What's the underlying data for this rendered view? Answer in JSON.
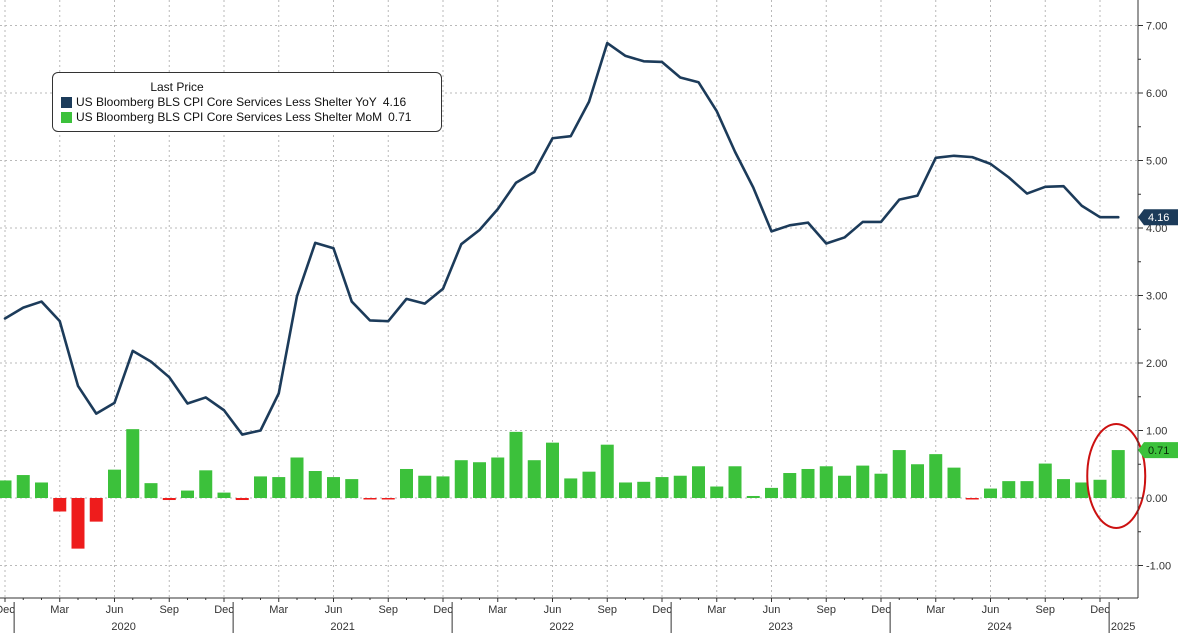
{
  "colors": {
    "yoy_line": "#1c3b5a",
    "mom_positive": "#3cc13b",
    "mom_negative": "#ee1c1c",
    "highlight_circle": "#cc1111",
    "grid": "#b9b9b9"
  },
  "legend": {
    "title": "Last Price",
    "items": [
      {
        "label": "US Bloomberg BLS CPI Core Services Less Shelter YoY",
        "value": "4.16",
        "color": "#1c3b5a"
      },
      {
        "label": "US Bloomberg BLS CPI Core Services Less Shelter MoM",
        "value": "0.71",
        "color": "#3cc13b"
      }
    ]
  },
  "badges": {
    "yoy": "4.16",
    "mom": "0.71"
  },
  "chart_data": {
    "type": "line",
    "x": [
      "2019-12",
      "2020-01",
      "2020-02",
      "2020-03",
      "2020-04",
      "2020-05",
      "2020-06",
      "2020-07",
      "2020-08",
      "2020-09",
      "2020-10",
      "2020-11",
      "2020-12",
      "2021-01",
      "2021-02",
      "2021-03",
      "2021-04",
      "2021-05",
      "2021-06",
      "2021-07",
      "2021-08",
      "2021-09",
      "2021-10",
      "2021-11",
      "2021-12",
      "2022-01",
      "2022-02",
      "2022-03",
      "2022-04",
      "2022-05",
      "2022-06",
      "2022-07",
      "2022-08",
      "2022-09",
      "2022-10",
      "2022-11",
      "2022-12",
      "2023-01",
      "2023-02",
      "2023-03",
      "2023-04",
      "2023-05",
      "2023-06",
      "2023-07",
      "2023-08",
      "2023-09",
      "2023-10",
      "2023-11",
      "2023-12",
      "2024-01",
      "2024-02",
      "2024-03",
      "2024-04",
      "2024-05",
      "2024-06",
      "2024-07",
      "2024-08",
      "2024-09",
      "2024-10",
      "2024-11",
      "2024-12",
      "2025-01"
    ],
    "series": [
      {
        "name": "US Bloomberg BLS CPI Core Services Less Shelter YoY",
        "type": "line",
        "values": [
          2.66,
          2.82,
          2.91,
          2.62,
          1.66,
          1.25,
          1.41,
          2.18,
          2.02,
          1.79,
          1.4,
          1.49,
          1.3,
          0.94,
          1.0,
          1.55,
          2.99,
          3.78,
          3.7,
          2.91,
          2.63,
          2.62,
          2.95,
          2.88,
          3.1,
          3.76,
          3.97,
          4.28,
          4.67,
          4.83,
          5.33,
          5.36,
          5.87,
          6.74,
          6.55,
          6.47,
          6.46,
          6.23,
          6.16,
          5.73,
          5.13,
          4.6,
          3.95,
          4.04,
          4.08,
          3.77,
          3.86,
          4.09,
          4.09,
          4.42,
          4.48,
          5.04,
          5.07,
          5.05,
          4.95,
          4.75,
          4.51,
          4.61,
          4.62,
          4.33,
          4.16,
          4.16
        ]
      },
      {
        "name": "US Bloomberg BLS CPI Core Services Less Shelter MoM",
        "type": "bar",
        "values": [
          0.26,
          0.34,
          0.23,
          -0.2,
          -0.75,
          -0.35,
          0.42,
          1.02,
          0.22,
          -0.03,
          0.11,
          0.41,
          0.08,
          -0.03,
          0.32,
          0.31,
          0.6,
          0.4,
          0.31,
          0.28,
          -0.02,
          -0.02,
          0.43,
          0.33,
          0.32,
          0.56,
          0.53,
          0.6,
          0.98,
          0.56,
          0.82,
          0.29,
          0.39,
          0.79,
          0.23,
          0.24,
          0.31,
          0.33,
          0.47,
          0.17,
          0.47,
          0.03,
          0.15,
          0.37,
          0.43,
          0.47,
          0.33,
          0.48,
          0.36,
          0.71,
          0.5,
          0.65,
          0.45,
          -0.01,
          0.14,
          0.25,
          0.25,
          0.51,
          0.28,
          0.23,
          0.27,
          0.71
        ]
      }
    ],
    "title": "",
    "xlabel": "",
    "ylabel": "",
    "ylim": [
      -1.5,
      7.4
    ],
    "y_ticks": [
      "7.00",
      "6.00",
      "5.00",
      "4.00",
      "3.00",
      "2.00",
      "1.00",
      "0.00",
      "-1.00"
    ],
    "x_month_ticks": [
      "Dec",
      "Mar",
      "Jun",
      "Sep",
      "Dec",
      "Mar",
      "Jun",
      "Sep",
      "Dec",
      "Mar",
      "Jun",
      "Sep",
      "Dec",
      "Mar",
      "Jun",
      "Sep",
      "Dec",
      "Mar",
      "Jun",
      "Sep",
      "Dec"
    ],
    "x_year_labels": [
      "2020",
      "2021",
      "2022",
      "2023",
      "2024",
      "2025"
    ],
    "grid": true,
    "legend_position": "top-left",
    "annotation": "red circle around latest MoM bar"
  }
}
